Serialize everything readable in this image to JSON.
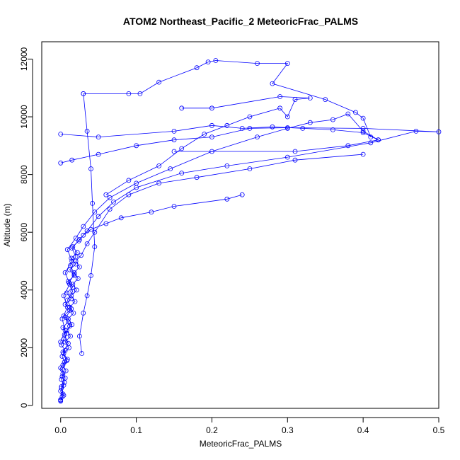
{
  "chart_data": {
    "type": "line",
    "title": "ATOM2 Northeast_Pacific_2 MeteoricFrac_PALMS",
    "xlabel": "MeteoricFrac_PALMS",
    "ylabel": "Altitude (m)",
    "xlim": [
      -0.025,
      0.5
    ],
    "ylim": [
      -100,
      12600
    ],
    "x_ticks": [
      0.0,
      0.1,
      0.2,
      0.3,
      0.4,
      0.5
    ],
    "x_tick_labels": [
      "0.0",
      "0.1",
      "0.2",
      "0.3",
      "0.4",
      "0.5"
    ],
    "y_ticks": [
      0,
      2000,
      4000,
      6000,
      8000,
      10000,
      12000
    ],
    "y_tick_labels": [
      "0",
      "2000",
      "4000",
      "6000",
      "8000",
      "10000",
      "12000"
    ],
    "grid": false,
    "legend": "none",
    "series_color": "#0000ff",
    "series": [
      {
        "points": [
          [
            0.0,
            150
          ],
          [
            0.002,
            300
          ],
          [
            0.0,
            500
          ],
          [
            0.004,
            700
          ],
          [
            0.001,
            900
          ],
          [
            0.003,
            1100
          ],
          [
            0.0,
            1300
          ],
          [
            0.005,
            1500
          ],
          [
            0.002,
            1700
          ],
          [
            0.006,
            1900
          ],
          [
            0.001,
            2100
          ],
          [
            0.004,
            2300
          ],
          [
            0.008,
            2500
          ],
          [
            0.003,
            2700
          ],
          [
            0.01,
            2900
          ],
          [
            0.004,
            3100
          ],
          [
            0.012,
            3300
          ],
          [
            0.006,
            3500
          ],
          [
            0.014,
            3700
          ],
          [
            0.008,
            3900
          ],
          [
            0.016,
            4100
          ],
          [
            0.01,
            4300
          ],
          [
            0.018,
            4500
          ],
          [
            0.012,
            4700
          ],
          [
            0.02,
            4900
          ],
          [
            0.014,
            5100
          ],
          [
            0.022,
            5300
          ],
          [
            0.016,
            5500
          ],
          [
            0.024,
            5700
          ],
          [
            0.03,
            5900
          ],
          [
            0.04,
            6100
          ],
          [
            0.06,
            6300
          ],
          [
            0.08,
            6500
          ],
          [
            0.12,
            6700
          ],
          [
            0.15,
            6900
          ],
          [
            0.22,
            7150
          ],
          [
            0.24,
            7300
          ]
        ]
      },
      {
        "points": [
          [
            0.0,
            200
          ],
          [
            0.003,
            400
          ],
          [
            0.001,
            600
          ],
          [
            0.005,
            800
          ],
          [
            0.002,
            1000
          ],
          [
            0.007,
            1200
          ],
          [
            0.003,
            1400
          ],
          [
            0.009,
            1600
          ],
          [
            0.004,
            1800
          ],
          [
            0.011,
            2000
          ],
          [
            0.006,
            2200
          ],
          [
            0.013,
            2400
          ],
          [
            0.008,
            2600
          ],
          [
            0.015,
            2800
          ],
          [
            0.01,
            3000
          ],
          [
            0.017,
            3200
          ],
          [
            0.012,
            3400
          ],
          [
            0.019,
            3600
          ],
          [
            0.014,
            3800
          ],
          [
            0.021,
            4000
          ],
          [
            0.016,
            4200
          ],
          [
            0.023,
            4400
          ],
          [
            0.018,
            4600
          ],
          [
            0.025,
            4800
          ],
          [
            0.02,
            5000
          ],
          [
            0.027,
            5200
          ],
          [
            0.035,
            5600
          ],
          [
            0.045,
            6000
          ],
          [
            0.065,
            6800
          ],
          [
            0.09,
            7300
          ],
          [
            0.13,
            7700
          ],
          [
            0.18,
            7900
          ],
          [
            0.25,
            8200
          ],
          [
            0.31,
            8500
          ],
          [
            0.4,
            8700
          ]
        ]
      },
      {
        "points": [
          [
            0.0,
            180
          ],
          [
            0.004,
            350
          ],
          [
            0.001,
            650
          ],
          [
            0.006,
            950
          ],
          [
            0.002,
            1250
          ],
          [
            0.008,
            1550
          ],
          [
            0.003,
            1850
          ],
          [
            0.01,
            2150
          ],
          [
            0.005,
            2450
          ],
          [
            0.012,
            2750
          ],
          [
            0.007,
            3050
          ],
          [
            0.014,
            3350
          ],
          [
            0.009,
            3650
          ],
          [
            0.016,
            3950
          ],
          [
            0.011,
            4250
          ],
          [
            0.018,
            4550
          ],
          [
            0.013,
            4850
          ],
          [
            0.02,
            5150
          ],
          [
            0.015,
            5450
          ],
          [
            0.025,
            5750
          ],
          [
            0.035,
            6050
          ],
          [
            0.05,
            6550
          ],
          [
            0.07,
            7050
          ],
          [
            0.1,
            7550
          ],
          [
            0.16,
            8050
          ],
          [
            0.22,
            8300
          ],
          [
            0.3,
            8600
          ],
          [
            0.41,
            9100
          ],
          [
            0.47,
            9500
          ],
          [
            0.5,
            9480
          ],
          [
            0.4,
            9600
          ],
          [
            0.3,
            9620
          ],
          [
            0.25,
            9600
          ],
          [
            0.2,
            9300
          ],
          [
            0.15,
            9200
          ],
          [
            0.1,
            9000
          ],
          [
            0.05,
            8700
          ],
          [
            0.015,
            8500
          ],
          [
            0.0,
            8400
          ]
        ]
      },
      {
        "points": [
          [
            0.0,
            2200
          ],
          [
            0.006,
            2600
          ],
          [
            0.002,
            3000
          ],
          [
            0.009,
            3400
          ],
          [
            0.004,
            3800
          ],
          [
            0.012,
            4200
          ],
          [
            0.006,
            4600
          ],
          [
            0.015,
            5000
          ],
          [
            0.009,
            5400
          ],
          [
            0.02,
            5800
          ],
          [
            0.03,
            6200
          ],
          [
            0.045,
            6700
          ],
          [
            0.065,
            7200
          ],
          [
            0.1,
            7700
          ],
          [
            0.145,
            8200
          ],
          [
            0.2,
            8800
          ],
          [
            0.26,
            9300
          ],
          [
            0.3,
            9600
          ],
          [
            0.33,
            9800
          ],
          [
            0.36,
            9900
          ],
          [
            0.38,
            10100
          ],
          [
            0.4,
            9500
          ],
          [
            0.42,
            9200
          ]
        ]
      },
      {
        "points": [
          [
            0.06,
            7300
          ],
          [
            0.09,
            7800
          ],
          [
            0.13,
            8300
          ],
          [
            0.16,
            8900
          ],
          [
            0.19,
            9400
          ],
          [
            0.22,
            9700
          ],
          [
            0.25,
            10000
          ],
          [
            0.29,
            10300
          ],
          [
            0.3,
            10000
          ],
          [
            0.31,
            10600
          ],
          [
            0.33,
            10650
          ],
          [
            0.29,
            10700
          ],
          [
            0.2,
            10300
          ],
          [
            0.16,
            10300
          ]
        ]
      },
      {
        "points": [
          [
            0.03,
            10800
          ],
          [
            0.09,
            10800
          ],
          [
            0.105,
            10800
          ],
          [
            0.13,
            11200
          ],
          [
            0.18,
            11700
          ],
          [
            0.195,
            11900
          ],
          [
            0.205,
            11950
          ],
          [
            0.26,
            11850
          ],
          [
            0.3,
            11850
          ],
          [
            0.28,
            11150
          ],
          [
            0.35,
            10600
          ],
          [
            0.39,
            10150
          ],
          [
            0.4,
            9950
          ],
          [
            0.41,
            9300
          ]
        ]
      },
      {
        "points": [
          [
            0.03,
            10800
          ],
          [
            0.035,
            9500
          ],
          [
            0.04,
            8200
          ],
          [
            0.042,
            7000
          ],
          [
            0.045,
            5500
          ],
          [
            0.04,
            4500
          ],
          [
            0.035,
            3800
          ],
          [
            0.03,
            3200
          ],
          [
            0.025,
            2400
          ],
          [
            0.028,
            1800
          ]
        ]
      },
      {
        "points": [
          [
            0.0,
            9400
          ],
          [
            0.05,
            9300
          ],
          [
            0.15,
            9500
          ],
          [
            0.2,
            9700
          ],
          [
            0.24,
            9600
          ],
          [
            0.28,
            9650
          ],
          [
            0.32,
            9600
          ],
          [
            0.36,
            9550
          ],
          [
            0.4,
            9450
          ],
          [
            0.42,
            9200
          ],
          [
            0.38,
            9000
          ],
          [
            0.31,
            8800
          ],
          [
            0.15,
            8800
          ]
        ]
      }
    ]
  }
}
